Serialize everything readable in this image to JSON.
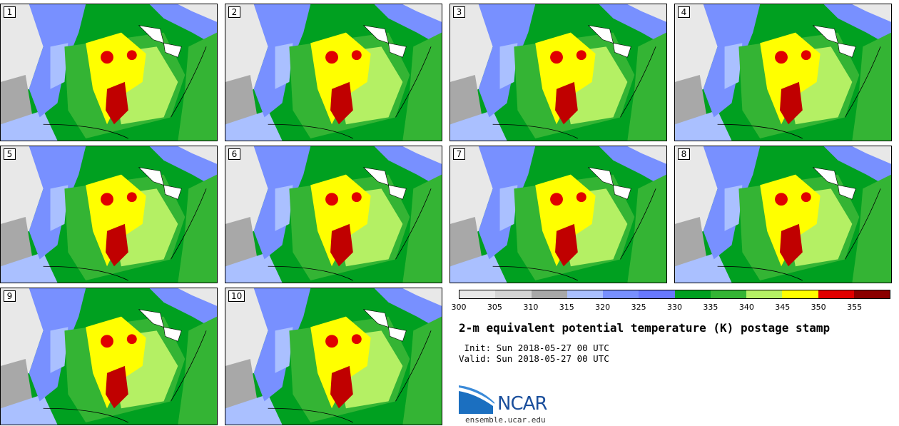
{
  "panels": [
    {
      "label": "1"
    },
    {
      "label": "2"
    },
    {
      "label": "3"
    },
    {
      "label": "4"
    },
    {
      "label": "5"
    },
    {
      "label": "6"
    },
    {
      "label": "7"
    },
    {
      "label": "8"
    },
    {
      "label": "9"
    },
    {
      "label": "10"
    }
  ],
  "colorbar": {
    "ticks": [
      "300",
      "305",
      "310",
      "315",
      "320",
      "325",
      "330",
      "335",
      "340",
      "345",
      "350",
      "355"
    ],
    "colors": [
      "#e8e8e8",
      "#d4d4d4",
      "#a8a8a8",
      "#aac0ff",
      "#7890ff",
      "#6878ff",
      "#00a020",
      "#34b434",
      "#b4f064",
      "#ffff00",
      "#e00000",
      "#8b0000"
    ]
  },
  "title": "2-m equivalent potential temperature (K) postage stamp",
  "init": " Init: Sun 2018-05-27 00 UTC",
  "valid": "Valid: Sun 2018-05-27 00 UTC",
  "logo": {
    "text": "NCAR",
    "site": "ensemble.ucar.edu"
  }
}
